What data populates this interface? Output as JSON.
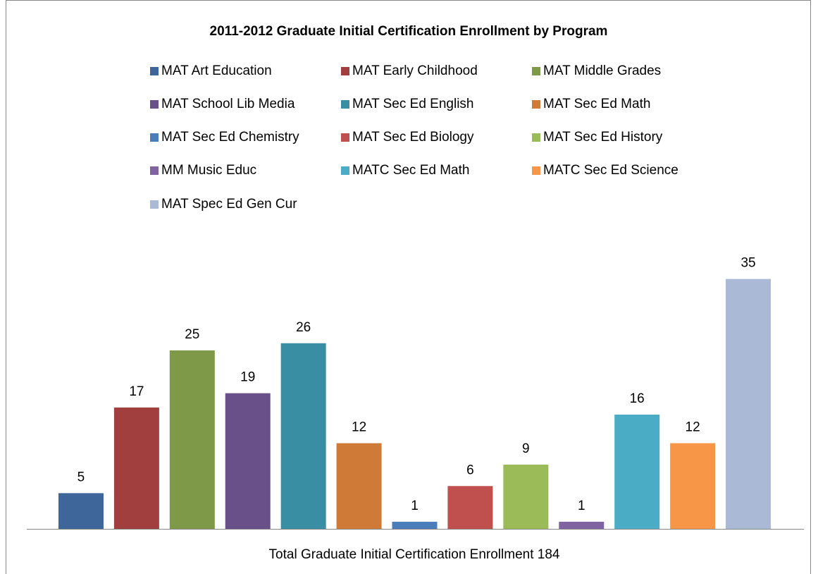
{
  "chart_data": {
    "type": "bar",
    "title": "2011-2012 Graduate Initial Certification Enrollment by Program",
    "x_label": "Total Graduate Initial Certification Enrollment 184",
    "ylim": [
      0,
      40
    ],
    "legend": "top",
    "series": [
      {
        "name": "MAT Art Education",
        "color": "#3E669B",
        "values": [
          5
        ]
      },
      {
        "name": "MAT Early Childhood",
        "color": "#A03F3D",
        "values": [
          17
        ]
      },
      {
        "name": "MAT Middle Grades",
        "color": "#7E9A48",
        "values": [
          25
        ]
      },
      {
        "name": "MAT School Lib Media",
        "color": "#6A5089",
        "values": [
          19
        ]
      },
      {
        "name": "MAT Sec Ed English",
        "color": "#3A8EA3",
        "values": [
          26
        ]
      },
      {
        "name": "MAT Sec Ed Math",
        "color": "#CF7B37",
        "values": [
          12
        ]
      },
      {
        "name": "MAT Sec Ed Chemistry",
        "color": "#4A7EBB",
        "values": [
          1
        ]
      },
      {
        "name": "MAT Sec Ed Biology",
        "color": "#C0504D",
        "values": [
          6
        ]
      },
      {
        "name": "MAT Sec Ed History",
        "color": "#9BBB59",
        "values": [
          9
        ]
      },
      {
        "name": "MM Music Educ",
        "color": "#8064A2",
        "values": [
          1
        ]
      },
      {
        "name": "MATC Sec Ed Math",
        "color": "#4BACC6",
        "values": [
          16
        ]
      },
      {
        "name": "MATC Sec Ed Science",
        "color": "#F79646",
        "values": [
          12
        ]
      },
      {
        "name": "MAT Spec Ed Gen Cur",
        "color": "#A9B9D6",
        "values": [
          35
        ]
      }
    ]
  }
}
